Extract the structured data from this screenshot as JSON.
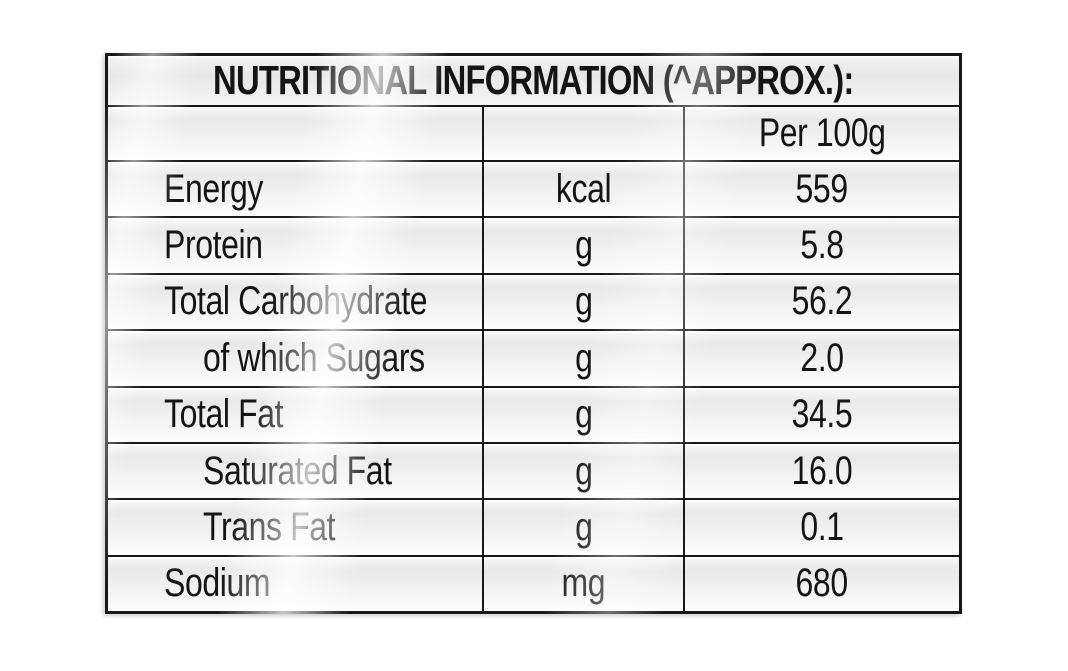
{
  "page": {
    "background_color": "#ffffff",
    "description": "Nutrition facts table printed on glossy product packaging"
  },
  "table": {
    "title": "NUTRITIONAL INFORMATION (^APPROX.):",
    "amount_column_header": "Per 100g",
    "rows": [
      {
        "label": "Energy",
        "unit": "kcal",
        "value": "559",
        "indent": false
      },
      {
        "label": "Protein",
        "unit": "g",
        "value": "5.8",
        "indent": false
      },
      {
        "label": "Total Carbohydrate",
        "unit": "g",
        "value": "56.2",
        "indent": false
      },
      {
        "label": "of which Sugars",
        "unit": "g",
        "value": "2.0",
        "indent": true
      },
      {
        "label": "Total Fat",
        "unit": "g",
        "value": "34.5",
        "indent": false
      },
      {
        "label": "Saturated Fat",
        "unit": "g",
        "value": "16.0",
        "indent": true
      },
      {
        "label": "Trans Fat",
        "unit": "g",
        "value": "0.1",
        "indent": true
      },
      {
        "label": "Sodium",
        "unit": "mg",
        "value": "680",
        "indent": false
      }
    ],
    "colors": {
      "border": "#181818",
      "text": "#141414",
      "cell_background": "#ededed"
    }
  }
}
